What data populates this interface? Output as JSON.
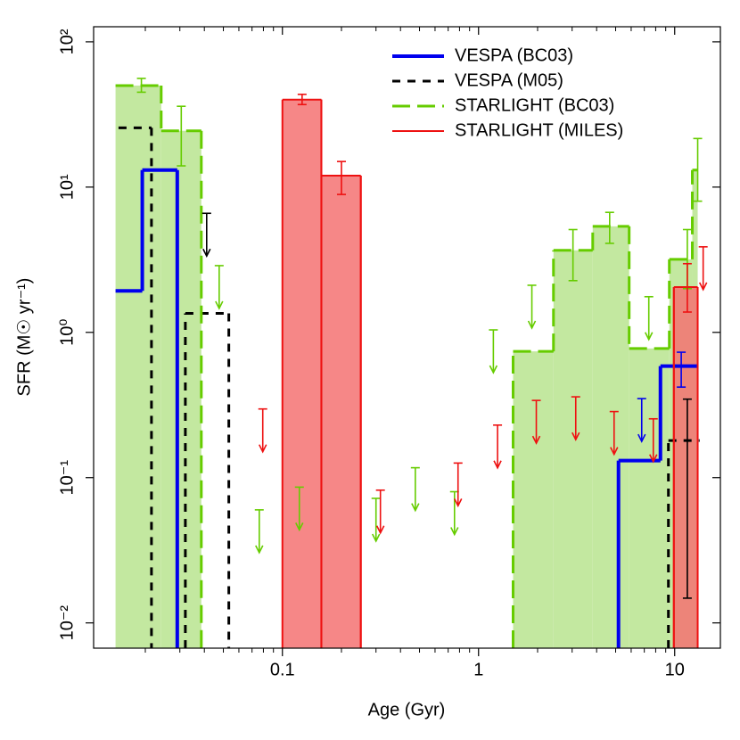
{
  "chart_data": {
    "type": "step-histogram",
    "xlabel": "Age (Gyr)",
    "ylabel": "SFR (M☉ yr⁻¹)",
    "xlog": true,
    "ylog": true,
    "xlim": [
      0.0109,
      17.1
    ],
    "ylim": [
      0.0067,
      127
    ],
    "xticks": [
      0.1,
      1,
      10
    ],
    "xminorticks": [
      0.02,
      0.03,
      0.04,
      0.05,
      0.06,
      0.07,
      0.08,
      0.09,
      0.2,
      0.3,
      0.4,
      0.5,
      0.6,
      0.7,
      0.8,
      0.9,
      2,
      3,
      4,
      5,
      6,
      7,
      8,
      9
    ],
    "yticks": [
      {
        "value": 0.01,
        "label": "10⁻²"
      },
      {
        "value": 0.1,
        "label": "10⁻¹"
      },
      {
        "value": 1,
        "label": "10⁰"
      },
      {
        "value": 10,
        "label": "10¹"
      },
      {
        "value": 100,
        "label": "10²"
      }
    ],
    "legend": "top-right",
    "series": [
      {
        "name": "VESPA (BC03)",
        "color": "#0000ee",
        "linestyle": "solid",
        "linewidth": 4,
        "bins": [
          0.0141,
          0.0193,
          0.0291,
          5.17,
          8.46,
          13.1
        ],
        "values": [
          1.93,
          13.1,
          null,
          0.131,
          0.586
        ],
        "errors": [
          {
            "x": 10.8,
            "lo": 0.42,
            "hi": 0.73
          }
        ],
        "upper_limits": [
          {
            "x": 6.79,
            "value": 0.35
          }
        ]
      },
      {
        "name": "VESPA (M05)",
        "color": "#000000",
        "linestyle": "dashed",
        "linewidth": 3,
        "bins": [
          0.0146,
          0.0215,
          0.032,
          0.0533,
          9.29,
          13.4
        ],
        "values": [
          25.6,
          null,
          1.35,
          null,
          0.18
        ],
        "errors": [
          {
            "x": 11.6,
            "lo": 0.0148,
            "hi": 0.347
          }
        ],
        "upper_limits": [
          {
            "x": 0.0411,
            "value": 6.6
          }
        ]
      },
      {
        "name": "STARLIGHT (BC03)",
        "color": "#66cc00",
        "fill": "#c3e8a0",
        "linestyle": "longdash",
        "linewidth": 3,
        "bins": [
          0.0141,
          0.0241,
          0.0386,
          1.5,
          2.41,
          3.82,
          5.86,
          9.39,
          12.3,
          13.1
        ],
        "values": [
          50,
          24.4,
          null,
          0.74,
          3.67,
          5.37,
          0.775,
          3.18,
          13.1
        ],
        "errors": [
          {
            "x": 0.0191,
            "lo": 45,
            "hi": 56
          },
          {
            "x": 0.0305,
            "lo": 14,
            "hi": 36
          },
          {
            "x": 3.03,
            "lo": 2.27,
            "hi": 5.1
          },
          {
            "x": 4.66,
            "lo": 4.1,
            "hi": 6.7
          },
          {
            "x": 11.6,
            "lo": 2.0,
            "hi": 5.1
          },
          {
            "x": 13.1,
            "lo": 8,
            "hi": 21.6
          }
        ],
        "upper_limits": [
          {
            "x": 0.0476,
            "value": 2.88
          },
          {
            "x": 0.0762,
            "value": 0.06
          },
          {
            "x": 0.122,
            "value": 0.086
          },
          {
            "x": 0.3,
            "value": 0.072
          },
          {
            "x": 0.476,
            "value": 0.117
          },
          {
            "x": 0.754,
            "value": 0.08
          },
          {
            "x": 1.19,
            "value": 1.04
          },
          {
            "x": 1.87,
            "value": 2.11
          },
          {
            "x": 7.38,
            "value": 1.76
          }
        ]
      },
      {
        "name": "STARLIGHT (MILES)",
        "color": "#ee1111",
        "fill": "#f47272",
        "linestyle": "solid",
        "linewidth": 2,
        "bins": [
          0.1,
          0.158,
          0.251,
          9.9,
          13.1
        ],
        "values": [
          40,
          12,
          null,
          2.05
        ],
        "errors": [
          {
            "x": 0.126,
            "lo": 37,
            "hi": 43.5
          },
          {
            "x": 0.2,
            "lo": 8.9,
            "hi": 15
          },
          {
            "x": 11.6,
            "lo": 1.38,
            "hi": 2.97
          }
        ],
        "upper_limits": [
          {
            "x": 0.0794,
            "value": 0.297
          },
          {
            "x": 0.316,
            "value": 0.082
          },
          {
            "x": 0.786,
            "value": 0.126
          },
          {
            "x": 1.25,
            "value": 0.23
          },
          {
            "x": 1.97,
            "value": 0.34
          },
          {
            "x": 3.13,
            "value": 0.36
          },
          {
            "x": 4.91,
            "value": 0.285
          },
          {
            "x": 7.78,
            "value": 0.254
          },
          {
            "x": 13.97,
            "value": 3.88
          }
        ]
      }
    ]
  }
}
